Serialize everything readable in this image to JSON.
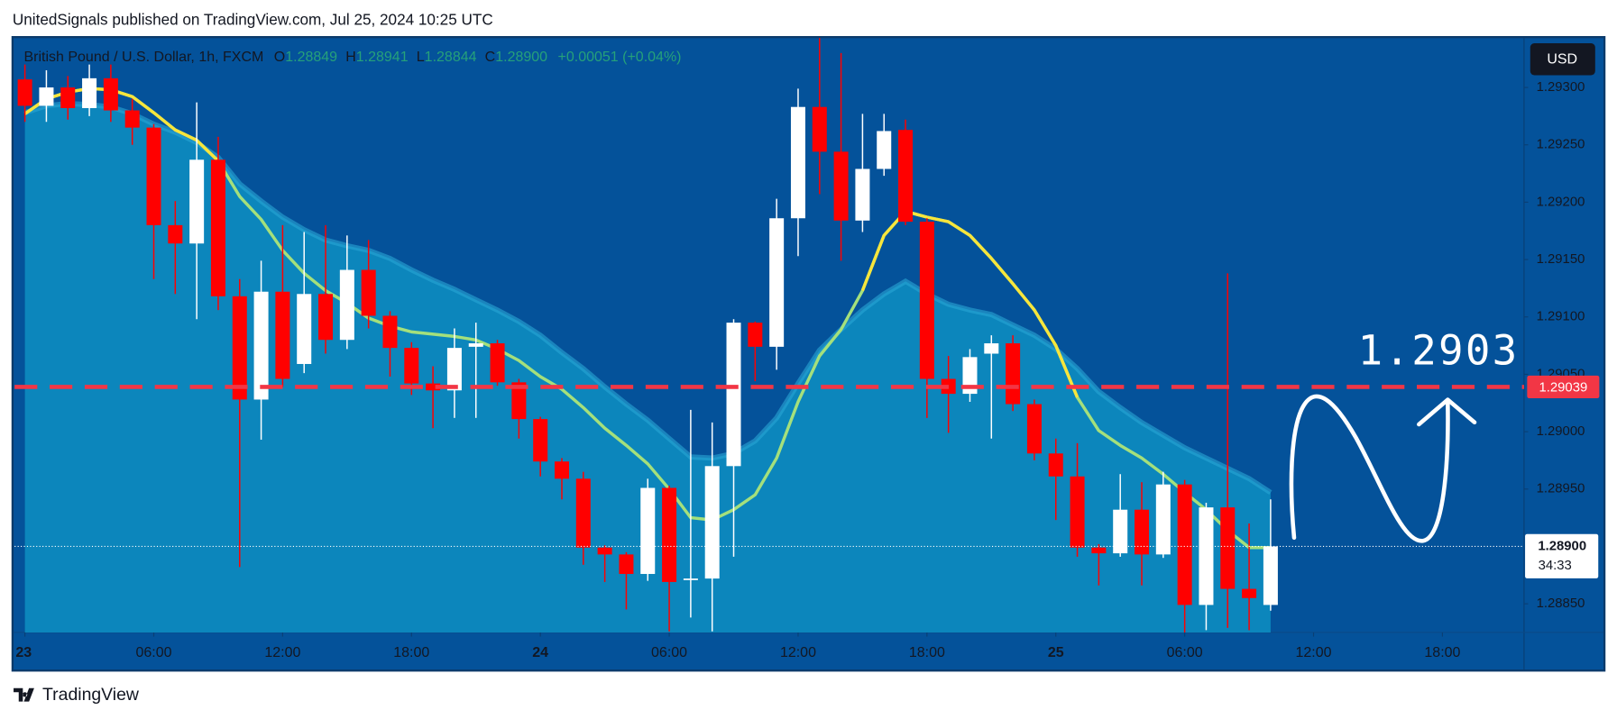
{
  "header": "UnitedSignals published on TradingView.com, Jul 25, 2024 10:25 UTC",
  "footer": "TradingView",
  "chart_data": {
    "type": "candlestick",
    "symbol": "British Pound / U.S. Dollar, 1h, FXCM",
    "legend": [
      {
        "label": "O",
        "value": "1.28849"
      },
      {
        "label": "H",
        "value": "1.28941"
      },
      {
        "label": "L",
        "value": "1.28844"
      },
      {
        "label": "C",
        "value": "1.28900"
      }
    ],
    "change": "+0.00051 (+0.04%)",
    "currency": "USD",
    "colors": {
      "up": "#ffffff",
      "down": "#ff0000",
      "background": "#04529a",
      "legend_value": "#26a17a"
    },
    "open": [
      1.29307,
      1.29284,
      1.293,
      1.29282,
      1.29308,
      1.2928,
      1.29265,
      1.2918,
      1.29164,
      1.29237,
      1.29118,
      1.29028,
      1.29122,
      1.29059,
      1.2912,
      1.2908,
      1.29141,
      1.29101,
      1.29073,
      1.29042,
      1.29036,
      1.29074,
      1.29077,
      1.29043,
      1.29011,
      1.28974,
      1.28959,
      1.28899,
      1.28893,
      1.28876,
      1.28951,
      1.28871,
      1.28872,
      1.2897,
      1.29095,
      1.29074,
      1.29186,
      1.29283,
      1.29244,
      1.29184,
      1.29229,
      1.29263,
      1.29183,
      1.29046,
      1.29033,
      1.29068,
      1.29077,
      1.29024,
      1.28981,
      1.28961,
      1.28899,
      1.28894,
      1.28932,
      1.28893,
      1.28954,
      1.28849,
      1.28934,
      1.28863,
      1.28849
    ],
    "high": [
      1.2932,
      1.29315,
      1.2931,
      1.2932,
      1.2932,
      1.2929,
      1.29268,
      1.29201,
      1.29287,
      1.29257,
      1.29133,
      1.29149,
      1.2918,
      1.29174,
      1.2918,
      1.29171,
      1.29167,
      1.29105,
      1.29078,
      1.29057,
      1.2909,
      1.29095,
      1.2908,
      1.29046,
      1.29013,
      1.28977,
      1.28965,
      1.28901,
      1.28895,
      1.28959,
      1.28953,
      1.29019,
      1.29008,
      1.29098,
      1.29096,
      1.29203,
      1.29299,
      1.2935,
      1.2933,
      1.29277,
      1.29277,
      1.29272,
      1.29186,
      1.29066,
      1.29072,
      1.29084,
      1.29084,
      1.29028,
      1.28994,
      1.2899,
      1.28902,
      1.28963,
      1.28956,
      1.28965,
      1.28958,
      1.28938,
      1.29138,
      1.2892,
      1.28941
    ],
    "low": [
      1.2927,
      1.2927,
      1.29272,
      1.29275,
      1.2927,
      1.2925,
      1.29133,
      1.2912,
      1.29098,
      1.29106,
      1.28882,
      1.28993,
      1.29039,
      1.29051,
      1.29068,
      1.29072,
      1.2909,
      1.29048,
      1.29032,
      1.29003,
      1.29012,
      1.29012,
      1.2904,
      1.28994,
      1.28961,
      1.28941,
      1.28884,
      1.28869,
      1.28845,
      1.2887,
      1.28826,
      1.28838,
      1.28826,
      1.28891,
      1.29044,
      1.29054,
      1.29153,
      1.29207,
      1.29149,
      1.29174,
      1.29223,
      1.2918,
      1.29012,
      1.28999,
      1.29026,
      1.28994,
      1.29018,
      1.28975,
      1.28923,
      1.28891,
      1.28866,
      1.28891,
      1.28866,
      1.2889,
      1.28825,
      1.28827,
      1.28829,
      1.28827,
      1.28844
    ],
    "close": [
      1.29284,
      1.293,
      1.29282,
      1.29308,
      1.2928,
      1.29265,
      1.2918,
      1.29164,
      1.29237,
      1.29118,
      1.29028,
      1.29122,
      1.29046,
      1.2912,
      1.2908,
      1.29141,
      1.29101,
      1.29073,
      1.29042,
      1.29036,
      1.29073,
      1.29077,
      1.29043,
      1.29011,
      1.28974,
      1.28959,
      1.28899,
      1.28893,
      1.28876,
      1.28951,
      1.28869,
      1.28872,
      1.2897,
      1.29095,
      1.29074,
      1.29186,
      1.29283,
      1.29244,
      1.29184,
      1.29229,
      1.29262,
      1.29183,
      1.29046,
      1.29033,
      1.29065,
      1.29077,
      1.29024,
      1.28981,
      1.28961,
      1.28899,
      1.28894,
      1.28932,
      1.28893,
      1.28954,
      1.28849,
      1.28934,
      1.28863,
      1.28855,
      1.289
    ],
    "band": {
      "color": "#0c86bc",
      "edge": "#2aa6d6",
      "values": [
        1.29278,
        1.29284,
        1.29286,
        1.29285,
        1.29283,
        1.29277,
        1.29268,
        1.29261,
        1.29252,
        1.29239,
        1.29216,
        1.29201,
        1.29187,
        1.29176,
        1.29167,
        1.29162,
        1.29158,
        1.29151,
        1.29141,
        1.29132,
        1.29124,
        1.29115,
        1.29106,
        1.29096,
        1.29084,
        1.29069,
        1.29055,
        1.29039,
        1.29024,
        1.2901,
        1.28994,
        1.28978,
        1.28977,
        1.28981,
        1.28992,
        1.29012,
        1.29042,
        1.29071,
        1.29089,
        1.29106,
        1.2912,
        1.29131,
        1.2912,
        1.29111,
        1.29106,
        1.29102,
        1.29093,
        1.29084,
        1.29072,
        1.29055,
        1.29035,
        1.29021,
        1.29008,
        1.28997,
        1.28986,
        1.28977,
        1.28968,
        1.28959,
        1.28947
      ]
    },
    "ma": {
      "color": "#a4e07c",
      "values": [
        1.29277,
        1.2929,
        1.29296,
        1.29299,
        1.29298,
        1.29292,
        1.29278,
        1.29263,
        1.29254,
        1.29236,
        1.29205,
        1.29185,
        1.29158,
        1.29138,
        1.29123,
        1.29112,
        1.29099,
        1.29092,
        1.29087,
        1.29085,
        1.29083,
        1.2908,
        1.29072,
        1.29062,
        1.29048,
        1.29037,
        1.29021,
        1.29003,
        1.28988,
        1.28972,
        1.2895,
        1.28925,
        1.28923,
        1.28932,
        1.28945,
        1.28977,
        1.29026,
        1.29066,
        1.29089,
        1.29123,
        1.29171,
        1.29192,
        1.29187,
        1.29183,
        1.29171,
        1.29151,
        1.29129,
        1.29106,
        1.29075,
        1.2903,
        1.29001,
        1.28988,
        1.28977,
        1.28963,
        1.28947,
        1.28932,
        1.28914,
        1.28899,
        1.28899
      ]
    },
    "ma_highlight": {
      "color": "#f7e53c",
      "values": [
        1.29277,
        1.2929,
        1.29296,
        1.29299,
        1.29298,
        1.29292,
        1.29278,
        1.29263,
        1.29254,
        1.29236,
        null,
        null,
        null,
        null,
        null,
        null,
        null,
        null,
        null,
        null,
        null,
        null,
        null,
        null,
        null,
        null,
        null,
        null,
        null,
        null,
        null,
        null,
        null,
        null,
        null,
        null,
        null,
        null,
        null,
        1.29123,
        1.29171,
        1.29192,
        1.29187,
        1.29183,
        1.29171,
        1.29151,
        1.29129,
        1.29106,
        1.29075,
        1.2903,
        null,
        null,
        null,
        null,
        null,
        null,
        null,
        null,
        null
      ]
    },
    "xlim": [
      -0.48,
      69.8
    ],
    "xticks": [
      {
        "value": 0,
        "label": "23"
      },
      {
        "value": 6,
        "label": "06:00"
      },
      {
        "value": 12,
        "label": "12:00"
      },
      {
        "value": 18,
        "label": "18:00"
      },
      {
        "value": 24,
        "label": "24"
      },
      {
        "value": 30,
        "label": "06:00"
      },
      {
        "value": 36,
        "label": "12:00"
      },
      {
        "value": 42,
        "label": "18:00"
      },
      {
        "value": 48,
        "label": "25"
      },
      {
        "value": 54,
        "label": "06:00"
      },
      {
        "value": 60,
        "label": "12:00"
      },
      {
        "value": 66,
        "label": "18:00"
      }
    ],
    "ylim": [
      1.28825,
      1.29343
    ],
    "yticks": [
      {
        "value": 1.2885,
        "label": "1.28850"
      },
      {
        "value": 1.2895,
        "label": "1.28950"
      },
      {
        "value": 1.29,
        "label": "1.29000"
      },
      {
        "value": 1.2905,
        "label": "1.29050"
      },
      {
        "value": 1.291,
        "label": "1.29100"
      },
      {
        "value": 1.2915,
        "label": "1.29150"
      },
      {
        "value": 1.292,
        "label": "1.29200"
      },
      {
        "value": 1.2925,
        "label": "1.29250"
      },
      {
        "value": 1.293,
        "label": "1.29300"
      }
    ],
    "price_line": {
      "value": 1.289,
      "label": "1.28900",
      "countdown": "34:33"
    },
    "level": {
      "value": 1.29039,
      "label": "1.29039",
      "color": "#f23645"
    },
    "annotation": "1.2903"
  }
}
